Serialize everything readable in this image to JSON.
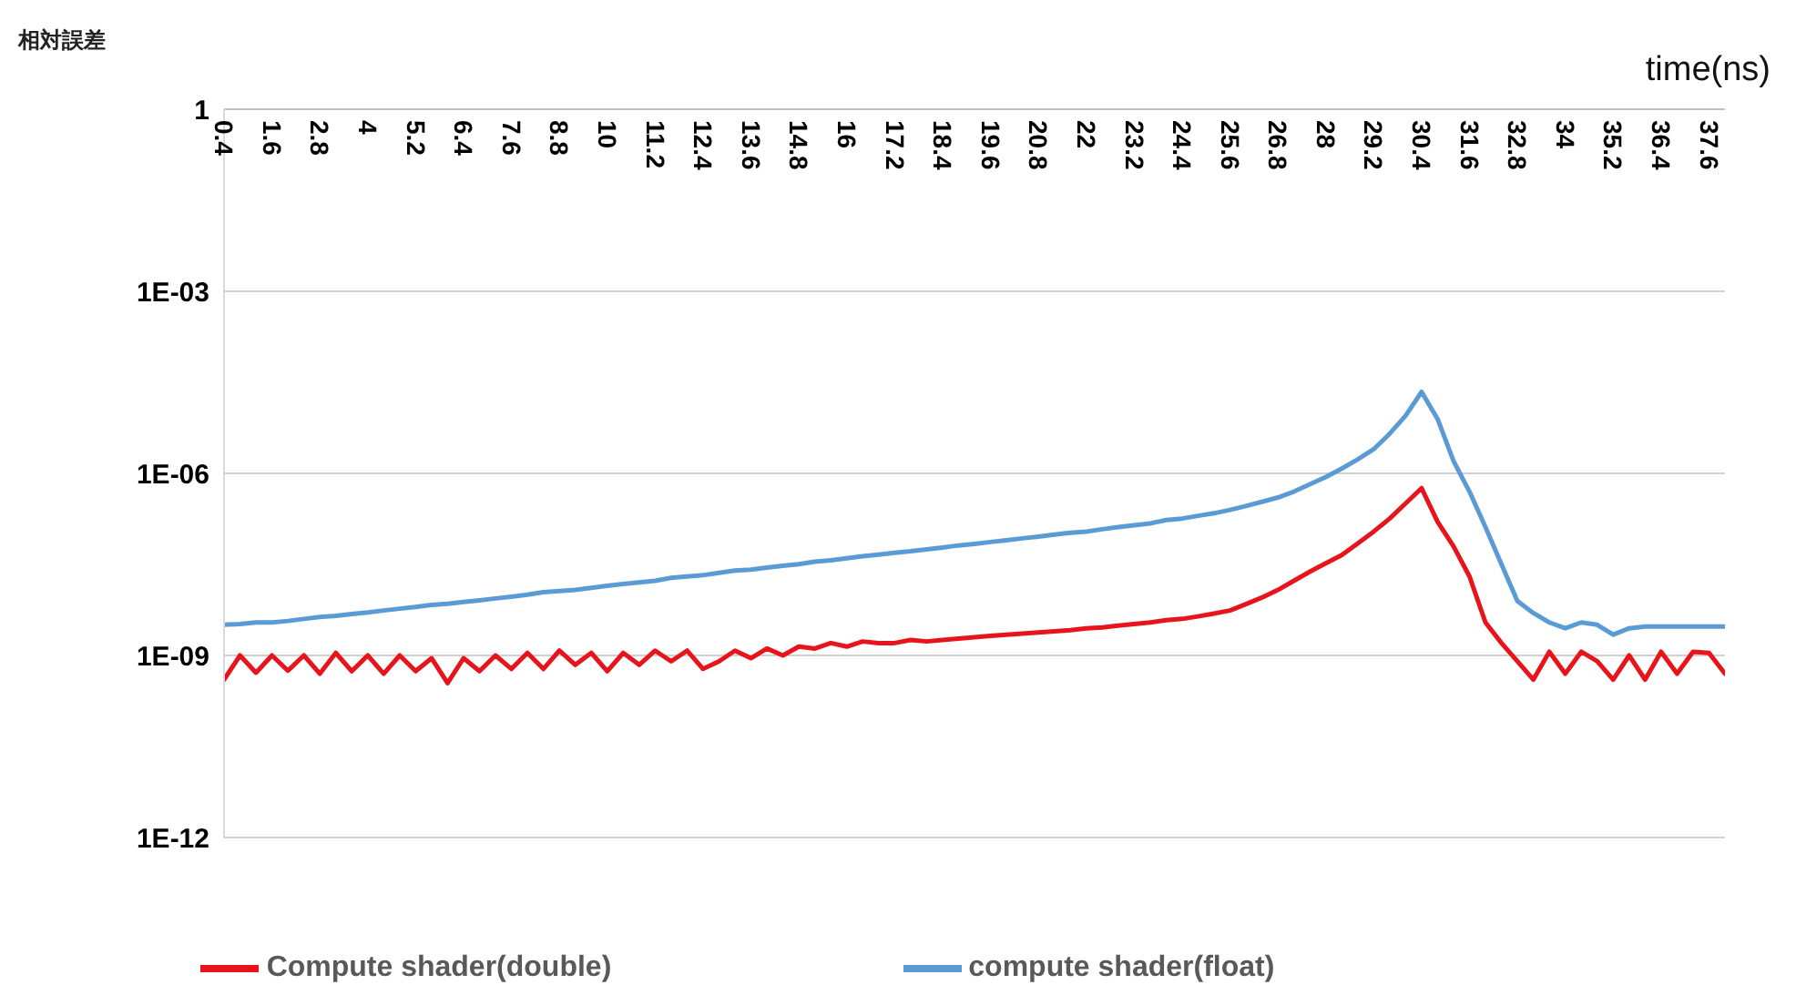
{
  "chart_data": {
    "type": "line",
    "xlabel": "time(ns)",
    "ylabel": "相対誤差",
    "x": [
      0.4,
      0.8,
      1.2,
      1.6,
      2,
      2.4,
      2.8,
      3.2,
      3.6,
      4,
      4.4,
      4.8,
      5.2,
      5.6,
      6,
      6.4,
      6.8,
      7.2,
      7.6,
      8,
      8.4,
      8.8,
      9.2,
      9.6,
      10,
      10.4,
      10.8,
      11.2,
      11.6,
      12,
      12.4,
      12.8,
      13.2,
      13.6,
      14,
      14.4,
      14.8,
      15.2,
      15.6,
      16,
      16.4,
      16.8,
      17.2,
      17.6,
      18,
      18.4,
      18.8,
      19.2,
      19.6,
      20,
      20.4,
      20.8,
      21.2,
      21.6,
      22,
      22.4,
      22.8,
      23.2,
      23.6,
      24,
      24.4,
      24.8,
      25.2,
      25.6,
      26,
      26.4,
      26.8,
      27.2,
      27.6,
      28,
      28.4,
      28.8,
      29.2,
      29.6,
      30,
      30.4,
      30.8,
      31.2,
      31.6,
      32,
      32.4,
      32.8,
      33.2,
      33.6,
      34,
      34.4,
      34.8,
      35.2,
      35.6,
      36,
      36.4,
      36.8,
      37.2,
      37.6,
      38
    ],
    "series": [
      {
        "name": "Compute shader(double)",
        "color": "#e8141b",
        "values": [
          4e-10,
          1e-09,
          5.2e-10,
          1e-09,
          5.6e-10,
          1e-09,
          5e-10,
          1.1e-09,
          5.5e-10,
          1e-09,
          5e-10,
          1e-09,
          5.5e-10,
          9e-10,
          3.5e-10,
          9e-10,
          5.5e-10,
          1e-09,
          6e-10,
          1.1e-09,
          6e-10,
          1.2e-09,
          7e-10,
          1.1e-09,
          5.5e-10,
          1.1e-09,
          7e-10,
          1.2e-09,
          8e-10,
          1.2e-09,
          6e-10,
          8e-10,
          1.2e-09,
          9e-10,
          1.3e-09,
          1e-09,
          1.4e-09,
          1.3e-09,
          1.6e-09,
          1.4e-09,
          1.7e-09,
          1.6e-09,
          1.6e-09,
          1.8e-09,
          1.7e-09,
          1.8e-09,
          1.9e-09,
          2e-09,
          2.1e-09,
          2.2e-09,
          2.3e-09,
          2.4e-09,
          2.5e-09,
          2.6e-09,
          2.8e-09,
          2.9e-09,
          3.1e-09,
          3.3e-09,
          3.5e-09,
          3.8e-09,
          4e-09,
          4.4e-09,
          4.9e-09,
          5.5e-09,
          7e-09,
          9e-09,
          1.2e-08,
          1.7e-08,
          2.4e-08,
          3.3e-08,
          4.5e-08,
          7e-08,
          1.1e-07,
          1.8e-07,
          3.2e-07,
          5.7e-07,
          1.6e-07,
          6.3e-08,
          2e-08,
          3.5e-09,
          1.6e-09,
          8e-10,
          4e-10,
          1.15e-09,
          5e-10,
          1.15e-09,
          8e-10,
          4e-10,
          1e-09,
          4e-10,
          1.15e-09,
          5e-10,
          1.15e-09,
          1.1e-09,
          5e-10
        ]
      },
      {
        "name": "compute shader(float)",
        "color": "#5b9bd5",
        "values": [
          3.2e-09,
          3.3e-09,
          3.5e-09,
          3.5e-09,
          3.7e-09,
          4e-09,
          4.3e-09,
          4.5e-09,
          4.8e-09,
          5.1e-09,
          5.5e-09,
          5.9e-09,
          6.3e-09,
          6.8e-09,
          7.1e-09,
          7.6e-09,
          8.1e-09,
          8.7e-09,
          9.3e-09,
          1e-08,
          1.1e-08,
          1.15e-08,
          1.2e-08,
          1.3e-08,
          1.4e-08,
          1.5e-08,
          1.6e-08,
          1.7e-08,
          1.9e-08,
          2e-08,
          2.1e-08,
          2.3e-08,
          2.5e-08,
          2.6e-08,
          2.8e-08,
          3e-08,
          3.2e-08,
          3.5e-08,
          3.7e-08,
          4e-08,
          4.3e-08,
          4.6e-08,
          4.9e-08,
          5.2e-08,
          5.6e-08,
          6e-08,
          6.5e-08,
          6.9e-08,
          7.4e-08,
          7.9e-08,
          8.5e-08,
          9.1e-08,
          9.8e-08,
          1.05e-07,
          1.1e-07,
          1.2e-07,
          1.3e-07,
          1.4e-07,
          1.5e-07,
          1.7e-07,
          1.8e-07,
          2e-07,
          2.2e-07,
          2.5e-07,
          2.9e-07,
          3.4e-07,
          4e-07,
          5e-07,
          6.6e-07,
          8.7e-07,
          1.2e-06,
          1.7e-06,
          2.5e-06,
          4.5e-06,
          8.9e-06,
          2.2e-05,
          7.9e-06,
          1.6e-06,
          5e-07,
          1.3e-07,
          3.2e-08,
          7.9e-09,
          5e-09,
          3.5e-09,
          2.8e-09,
          3.5e-09,
          3.2e-09,
          2.2e-09,
          2.8e-09,
          3e-09,
          3e-09,
          3e-09,
          3e-09,
          3e-09,
          3e-09
        ]
      }
    ],
    "log": true,
    "xlim": [
      0.4,
      38
    ],
    "xticks": [
      0.4,
      1.6,
      2.8,
      4,
      5.2,
      6.4,
      7.6,
      8.8,
      10,
      11.2,
      12.4,
      13.6,
      14.8,
      16,
      17.2,
      18.4,
      19.6,
      20.8,
      22,
      23.2,
      24.4,
      25.6,
      26.8,
      28,
      29.2,
      30.4,
      31.6,
      32.8,
      34,
      35.2,
      36.4,
      37.6
    ],
    "ylim": [
      1e-12,
      1
    ],
    "yticks": [
      {
        "value": 1e-12,
        "label": "1E-12"
      },
      {
        "value": 1e-09,
        "label": "1E-09"
      },
      {
        "value": 1e-06,
        "label": "1E-06"
      },
      {
        "value": 0.001,
        "label": "1E-03"
      },
      1
    ],
    "grid": "y",
    "legend": "bottom",
    "marker": "none",
    "line_style": "solid"
  }
}
